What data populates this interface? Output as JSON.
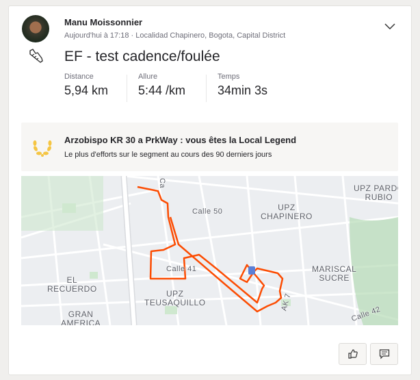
{
  "activity": {
    "athlete_name": "Manu Moissonnier",
    "meta": "Aujourd'hui à 17:18 · Localidad Chapinero, Bogota, Capital District",
    "title": "EF - test cadence/foulée",
    "sport_icon": "running-shoe-icon",
    "stats": [
      {
        "label": "Distance",
        "value": "5,94 km"
      },
      {
        "label": "Allure",
        "value": "5:44 /km"
      },
      {
        "label": "Temps",
        "value": "34min 3s"
      }
    ]
  },
  "achievement": {
    "icon": "laurel-icon",
    "title": "Arzobispo KR 30 a PrkWay : vous êtes la Local Legend",
    "subtitle": "Le plus d'efforts sur le segment au cours des 90 derniers jours",
    "color": "#f5c542"
  },
  "map": {
    "route_color": "#fc4c02",
    "labels": {
      "calle50": "Calle 50",
      "ca": "Ca",
      "upz_chapinero": "UPZ\nCHAPINERO",
      "upz_pardo": "UPZ PARDO\nRUBIO",
      "calle41": "Calle 41",
      "el_recuerdo": "EL\nRECUERDO",
      "teusaquillo": "UPZ\nTEUSAQUILLO",
      "gran_america": "GRAN\nAMERICA",
      "mariscal": "MARISCAL\nSUCRE",
      "ak7": "AK 7",
      "calle42": "Calle 42"
    }
  },
  "actions": {
    "like_icon": "thumbs-up-icon",
    "comment_icon": "comment-icon"
  }
}
